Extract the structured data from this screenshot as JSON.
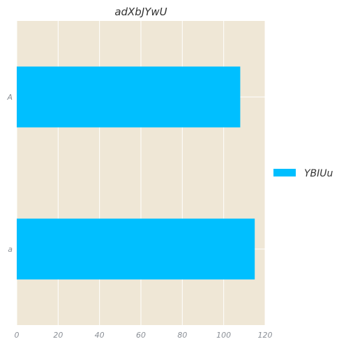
{
  "chart_data": {
    "type": "bar",
    "orientation": "horizontal",
    "title": "adXbJYwU",
    "categories": [
      "A",
      "a"
    ],
    "series": [
      {
        "name": "YBIUu",
        "values": [
          108,
          115
        ],
        "color": "#00bfff"
      }
    ],
    "xlim": [
      0,
      120
    ],
    "xticks": [
      0,
      20,
      40,
      60,
      80,
      100,
      120
    ],
    "grid": true,
    "legend_position": "right",
    "colors": {
      "plot_background": "#efe7d6",
      "grid": "#ffffff",
      "bar": "#00bfff"
    }
  }
}
